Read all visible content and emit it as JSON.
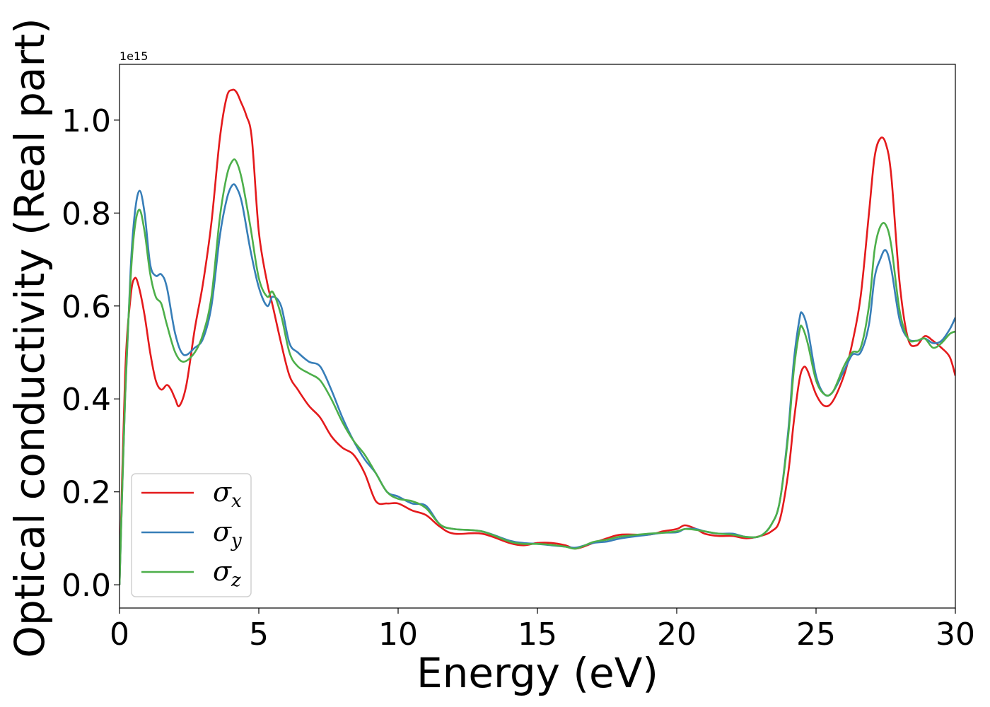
{
  "chart_data": {
    "type": "line",
    "title": "",
    "xlabel": "Energy (eV)",
    "ylabel": "Optical conductivity (Real part)",
    "y_offset_label": "1e15",
    "y_scale_factor": 1000000000000000.0,
    "xlim": [
      0,
      30
    ],
    "ylim": [
      -0.05,
      1.12
    ],
    "x_ticks": [
      0,
      5,
      10,
      15,
      20,
      25,
      30
    ],
    "x_tick_labels": [
      "0",
      "5",
      "10",
      "15",
      "20",
      "25",
      "30"
    ],
    "y_ticks": [
      0.0,
      0.2,
      0.4,
      0.6,
      0.8,
      1.0
    ],
    "y_tick_labels": [
      "0.0",
      "0.2",
      "0.4",
      "0.6",
      "0.8",
      "1.0"
    ],
    "grid": false,
    "legend_position": "lower-left",
    "series": [
      {
        "name": "σx",
        "symbol": "σ",
        "subscript": "x",
        "color": "#e41a1c",
        "x": [
          0,
          0.2,
          0.4,
          0.55,
          0.7,
          0.9,
          1.1,
          1.3,
          1.5,
          1.7,
          1.85,
          2.0,
          2.15,
          2.4,
          2.7,
          3.0,
          3.3,
          3.6,
          3.85,
          4.05,
          4.2,
          4.35,
          4.55,
          4.75,
          5.0,
          5.3,
          5.5,
          5.8,
          6.1,
          6.4,
          6.8,
          7.2,
          7.6,
          8.0,
          8.4,
          8.8,
          9.2,
          9.6,
          10.0,
          10.5,
          11.0,
          11.5,
          12.0,
          13.0,
          14.0,
          14.5,
          15.0,
          15.5,
          16.0,
          16.4,
          17.0,
          17.5,
          18.0,
          19.0,
          19.5,
          20.0,
          20.3,
          20.7,
          21.0,
          21.5,
          22.0,
          22.5,
          23.0,
          23.4,
          23.7,
          24.0,
          24.2,
          24.4,
          24.55,
          24.7,
          25.0,
          25.3,
          25.6,
          26.0,
          26.3,
          26.6,
          26.9,
          27.1,
          27.3,
          27.5,
          27.7,
          28.0,
          28.3,
          28.6,
          28.9,
          29.2,
          29.5,
          29.8,
          30.0
        ],
        "values": [
          0.0,
          0.45,
          0.62,
          0.66,
          0.64,
          0.58,
          0.5,
          0.44,
          0.42,
          0.43,
          0.42,
          0.4,
          0.385,
          0.43,
          0.55,
          0.65,
          0.78,
          0.96,
          1.05,
          1.065,
          1.06,
          1.04,
          1.01,
          0.96,
          0.76,
          0.65,
          0.6,
          0.52,
          0.45,
          0.42,
          0.385,
          0.36,
          0.32,
          0.295,
          0.28,
          0.24,
          0.18,
          0.175,
          0.175,
          0.16,
          0.15,
          0.125,
          0.11,
          0.11,
          0.09,
          0.085,
          0.09,
          0.09,
          0.085,
          0.078,
          0.09,
          0.1,
          0.108,
          0.108,
          0.115,
          0.12,
          0.128,
          0.12,
          0.11,
          0.105,
          0.105,
          0.1,
          0.105,
          0.115,
          0.14,
          0.24,
          0.35,
          0.44,
          0.468,
          0.46,
          0.41,
          0.385,
          0.395,
          0.45,
          0.52,
          0.62,
          0.8,
          0.92,
          0.96,
          0.95,
          0.88,
          0.65,
          0.53,
          0.515,
          0.535,
          0.525,
          0.51,
          0.49,
          0.45
        ]
      },
      {
        "name": "σy",
        "symbol": "σ",
        "subscript": "y",
        "color": "#377eb8",
        "x": [
          0,
          0.2,
          0.4,
          0.55,
          0.72,
          0.9,
          1.1,
          1.3,
          1.5,
          1.7,
          2.0,
          2.3,
          2.7,
          3.0,
          3.3,
          3.6,
          3.85,
          4.05,
          4.2,
          4.4,
          4.7,
          5.0,
          5.3,
          5.5,
          5.8,
          6.1,
          6.4,
          6.8,
          7.2,
          7.6,
          8.0,
          8.4,
          8.8,
          9.2,
          9.6,
          10.0,
          10.5,
          11.0,
          11.5,
          12.0,
          13.0,
          14.0,
          14.5,
          15.0,
          15.5,
          16.0,
          16.4,
          17.0,
          17.5,
          18.0,
          19.0,
          19.5,
          20.0,
          20.3,
          20.7,
          21.0,
          21.5,
          22.0,
          22.5,
          23.0,
          23.4,
          23.7,
          24.0,
          24.2,
          24.4,
          24.5,
          24.7,
          25.0,
          25.3,
          25.6,
          26.0,
          26.3,
          26.6,
          26.9,
          27.1,
          27.3,
          27.5,
          27.7,
          28.0,
          28.3,
          28.6,
          28.9,
          29.2,
          29.5,
          29.8,
          30.0
        ],
        "values": [
          0.0,
          0.4,
          0.68,
          0.8,
          0.848,
          0.8,
          0.69,
          0.665,
          0.668,
          0.64,
          0.54,
          0.495,
          0.51,
          0.53,
          0.6,
          0.75,
          0.83,
          0.86,
          0.855,
          0.82,
          0.72,
          0.64,
          0.6,
          0.62,
          0.6,
          0.52,
          0.5,
          0.48,
          0.47,
          0.42,
          0.36,
          0.31,
          0.27,
          0.24,
          0.2,
          0.19,
          0.175,
          0.17,
          0.13,
          0.12,
          0.115,
          0.095,
          0.09,
          0.088,
          0.085,
          0.082,
          0.08,
          0.09,
          0.093,
          0.1,
          0.108,
          0.112,
          0.113,
          0.12,
          0.12,
          0.115,
          0.11,
          0.11,
          0.103,
          0.105,
          0.13,
          0.18,
          0.33,
          0.48,
          0.57,
          0.585,
          0.55,
          0.45,
          0.41,
          0.415,
          0.46,
          0.495,
          0.5,
          0.56,
          0.66,
          0.7,
          0.72,
          0.68,
          0.57,
          0.53,
          0.525,
          0.53,
          0.52,
          0.525,
          0.55,
          0.575
        ]
      },
      {
        "name": "σz",
        "symbol": "σ",
        "subscript": "z",
        "color": "#4daf4a",
        "x": [
          0,
          0.2,
          0.4,
          0.55,
          0.72,
          0.9,
          1.1,
          1.3,
          1.5,
          1.7,
          2.0,
          2.3,
          2.7,
          3.0,
          3.3,
          3.6,
          3.85,
          4.05,
          4.2,
          4.4,
          4.7,
          5.0,
          5.3,
          5.5,
          5.8,
          6.1,
          6.4,
          6.8,
          7.2,
          7.6,
          8.0,
          8.4,
          8.8,
          9.2,
          9.6,
          10.0,
          10.5,
          11.0,
          11.5,
          12.0,
          13.0,
          14.0,
          14.5,
          15.0,
          15.5,
          16.0,
          16.4,
          17.0,
          17.5,
          18.0,
          19.0,
          19.5,
          20.0,
          20.3,
          20.7,
          21.0,
          21.5,
          22.0,
          22.5,
          23.0,
          23.4,
          23.7,
          24.0,
          24.2,
          24.4,
          24.5,
          24.7,
          25.0,
          25.3,
          25.6,
          26.0,
          26.3,
          26.6,
          26.9,
          27.1,
          27.3,
          27.5,
          27.7,
          28.0,
          28.3,
          28.6,
          28.9,
          29.2,
          29.5,
          29.8,
          30.0
        ],
        "values": [
          0.0,
          0.4,
          0.66,
          0.77,
          0.807,
          0.76,
          0.67,
          0.62,
          0.605,
          0.56,
          0.5,
          0.48,
          0.5,
          0.54,
          0.62,
          0.79,
          0.88,
          0.912,
          0.91,
          0.87,
          0.77,
          0.66,
          0.62,
          0.63,
          0.58,
          0.5,
          0.47,
          0.455,
          0.44,
          0.4,
          0.35,
          0.31,
          0.28,
          0.24,
          0.2,
          0.185,
          0.18,
          0.165,
          0.13,
          0.12,
          0.115,
          0.093,
          0.088,
          0.088,
          0.086,
          0.082,
          0.078,
          0.092,
          0.097,
          0.104,
          0.11,
          0.112,
          0.115,
          0.12,
          0.118,
          0.115,
          0.11,
          0.108,
          0.103,
          0.105,
          0.13,
          0.18,
          0.32,
          0.46,
          0.545,
          0.555,
          0.52,
          0.44,
          0.41,
          0.415,
          0.47,
          0.5,
          0.51,
          0.6,
          0.72,
          0.77,
          0.775,
          0.73,
          0.59,
          0.53,
          0.525,
          0.53,
          0.51,
          0.52,
          0.54,
          0.545
        ]
      }
    ]
  }
}
